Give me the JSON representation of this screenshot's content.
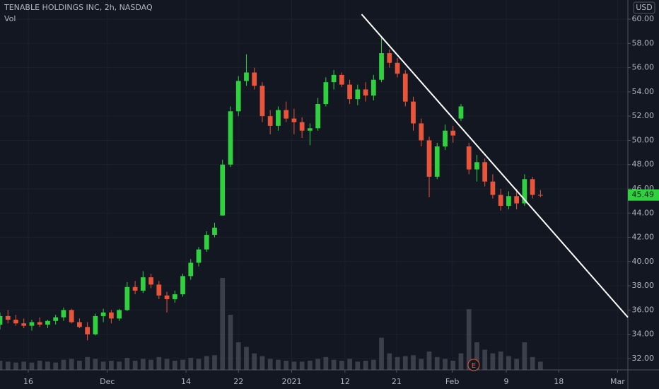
{
  "chart_data": {
    "type": "candlestick",
    "title": "TENABLE HOLDINGS INC, 2h, NASDAQ",
    "volume_label": "Vol",
    "currency": "USD",
    "x": [
      0,
      1,
      2,
      3,
      4,
      5,
      6,
      7,
      8,
      9,
      10,
      11,
      12,
      13,
      14,
      15,
      16,
      17,
      18,
      19,
      20,
      21,
      22,
      23,
      24,
      25,
      26,
      27,
      28,
      29,
      30,
      31,
      32,
      33,
      34,
      35,
      36,
      37,
      38,
      39,
      40,
      41,
      42,
      43,
      44,
      45,
      46,
      47,
      48,
      49,
      50,
      51,
      52,
      53,
      54,
      55,
      56,
      57,
      58,
      59,
      60,
      61,
      62,
      63,
      64,
      65,
      66,
      67,
      68
    ],
    "open": [
      34.8,
      35.5,
      35.2,
      34.9,
      34.7,
      35.0,
      34.8,
      35.1,
      35.4,
      36.0,
      35.0,
      34.6,
      34.0,
      35.5,
      35.8,
      35.3,
      36.0,
      37.9,
      37.6,
      38.7,
      38.1,
      37.2,
      36.9,
      37.3,
      38.8,
      39.9,
      41.0,
      42.2,
      43.8,
      48.0,
      52.4,
      54.9,
      55.6,
      54.5,
      52.0,
      51.2,
      52.5,
      51.8,
      51.5,
      50.8,
      51.0,
      53.0,
      54.8,
      55.4,
      54.6,
      53.4,
      54.2,
      53.7,
      55.0,
      57.2,
      56.4,
      55.5,
      53.2,
      51.4,
      50.0,
      47.0,
      49.5,
      50.8,
      51.8,
      49.5,
      47.6,
      48.2,
      46.6,
      45.5,
      44.6,
      45.4,
      44.8,
      46.8,
      45.5
    ],
    "high": [
      35.8,
      36.0,
      35.6,
      35.3,
      35.2,
      35.4,
      35.2,
      35.6,
      36.2,
      36.1,
      35.3,
      35.0,
      35.7,
      36.1,
      36.0,
      36.1,
      38.3,
      38.4,
      39.2,
      39.0,
      38.4,
      37.5,
      37.6,
      39.0,
      40.2,
      41.2,
      42.5,
      43.2,
      48.4,
      52.8,
      55.3,
      57.1,
      56.0,
      54.8,
      52.5,
      52.8,
      53.2,
      52.6,
      51.9,
      51.4,
      53.5,
      55.2,
      55.8,
      55.6,
      55.0,
      54.6,
      54.8,
      55.4,
      58.5,
      57.5,
      56.8,
      55.8,
      53.6,
      51.8,
      50.3,
      49.8,
      51.3,
      51.2,
      53.0,
      49.8,
      48.8,
      48.5,
      47.2,
      46.0,
      45.8,
      46.0,
      47.2,
      47.0,
      45.9
    ],
    "low": [
      34.4,
      34.9,
      34.7,
      34.5,
      34.3,
      34.6,
      34.5,
      34.8,
      35.1,
      34.9,
      34.5,
      33.5,
      33.9,
      35.0,
      34.9,
      35.1,
      35.9,
      37.3,
      37.4,
      37.8,
      36.9,
      35.8,
      36.6,
      37.1,
      38.5,
      39.6,
      40.8,
      42.0,
      43.8,
      47.8,
      52.0,
      54.5,
      54.2,
      51.5,
      50.5,
      50.8,
      51.5,
      50.5,
      50.2,
      49.6,
      50.8,
      52.8,
      54.2,
      54.4,
      53.0,
      52.9,
      53.2,
      53.3,
      54.8,
      56.0,
      55.2,
      52.8,
      50.8,
      49.5,
      45.3,
      46.8,
      49.2,
      49.8,
      51.6,
      47.2,
      46.6,
      46.2,
      45.2,
      44.2,
      44.3,
      44.3,
      44.6,
      45.2,
      45.3
    ],
    "close": [
      35.5,
      35.2,
      34.9,
      34.7,
      35.0,
      34.8,
      35.1,
      35.4,
      36.0,
      35.0,
      34.6,
      34.0,
      35.5,
      35.8,
      35.3,
      36.0,
      37.9,
      37.6,
      38.7,
      38.1,
      37.2,
      36.9,
      37.3,
      38.8,
      39.9,
      41.0,
      42.2,
      42.8,
      48.0,
      52.4,
      54.9,
      55.6,
      54.5,
      52.0,
      51.2,
      52.5,
      51.8,
      51.5,
      50.8,
      51.0,
      53.0,
      54.8,
      55.4,
      54.6,
      53.4,
      54.2,
      53.7,
      55.0,
      57.2,
      56.4,
      55.5,
      53.2,
      51.4,
      50.0,
      47.0,
      49.5,
      50.8,
      50.4,
      52.8,
      47.6,
      48.2,
      46.6,
      45.5,
      44.6,
      45.4,
      44.8,
      46.8,
      45.5,
      45.49
    ],
    "volume": [
      10,
      9,
      8,
      9,
      8,
      10,
      9,
      8,
      11,
      12,
      10,
      14,
      12,
      9,
      10,
      9,
      13,
      10,
      12,
      11,
      14,
      12,
      10,
      11,
      13,
      12,
      15,
      16,
      100,
      60,
      30,
      25,
      18,
      15,
      12,
      11,
      10,
      9,
      9,
      10,
      12,
      14,
      11,
      10,
      12,
      9,
      10,
      11,
      35,
      18,
      14,
      15,
      16,
      12,
      20,
      14,
      12,
      10,
      18,
      66,
      30,
      22,
      18,
      20,
      15,
      12,
      30,
      14,
      9
    ],
    "up_color": "#2fd13f",
    "down_color": "#e8553a",
    "trend_line": {
      "x": [
        45.5,
        79
      ],
      "y": [
        60.4,
        35.4
      ]
    },
    "earnings_label": "E",
    "earnings_x": 59.6,
    "xlim": [
      0,
      79
    ],
    "ylim": [
      31.06,
      61.58
    ],
    "xticks": [
      {
        "value": 3.56,
        "label": "16"
      },
      {
        "value": 13.5,
        "label": "Dec"
      },
      {
        "value": 23.4,
        "label": "14"
      },
      {
        "value": 30.0,
        "label": "22"
      },
      {
        "value": 36.7,
        "label": "2021"
      },
      {
        "value": 43.4,
        "label": "12"
      },
      {
        "value": 49.9,
        "label": "21"
      },
      {
        "value": 56.9,
        "label": "Feb"
      },
      {
        "value": 63.7,
        "label": "9"
      },
      {
        "value": 70.3,
        "label": "18"
      },
      {
        "value": 77.7,
        "label": "Mar"
      }
    ],
    "yticks": [
      {
        "value": 32,
        "label": "32.00"
      },
      {
        "value": 34,
        "label": "34.00"
      },
      {
        "value": 36,
        "label": "36.00"
      },
      {
        "value": 38,
        "label": "38.00"
      },
      {
        "value": 40,
        "label": "40.00"
      },
      {
        "value": 42,
        "label": "42.00"
      },
      {
        "value": 44,
        "label": "44.00"
      },
      {
        "value": 46,
        "label": "46.00"
      },
      {
        "value": 48,
        "label": "48.00"
      },
      {
        "value": 50,
        "label": "50.00"
      },
      {
        "value": 52,
        "label": "52.00"
      },
      {
        "value": 54,
        "label": "54.00"
      },
      {
        "value": 56,
        "label": "56.00"
      },
      {
        "value": 58,
        "label": "58.00"
      },
      {
        "value": 60,
        "label": "60.00"
      }
    ],
    "grid": true
  }
}
